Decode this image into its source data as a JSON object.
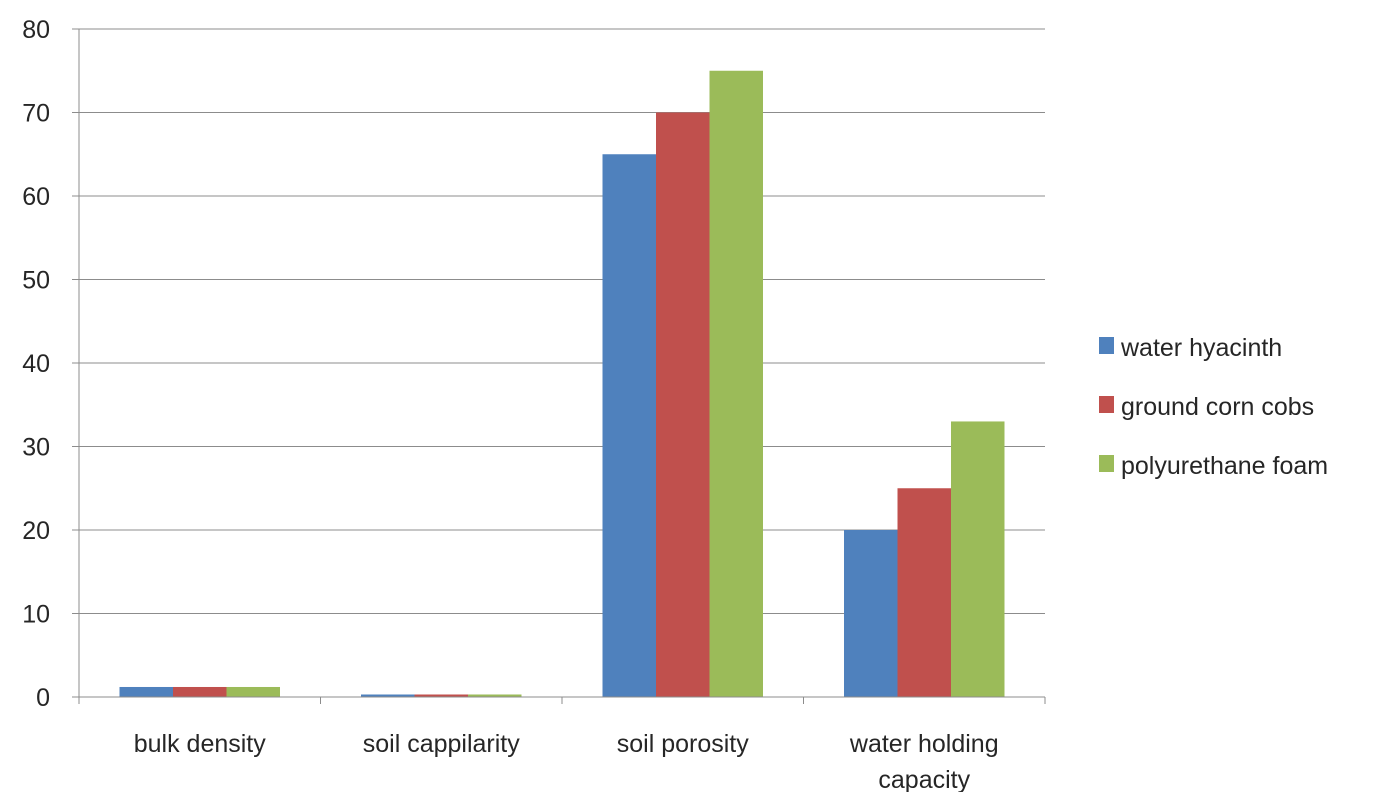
{
  "chart_data": {
    "type": "bar",
    "title": "",
    "xlabel": "",
    "ylabel": "",
    "categories": [
      [
        "bulk density"
      ],
      [
        "soil cappilarity"
      ],
      [
        "soil porosity"
      ],
      [
        "water holding",
        "capacity"
      ]
    ],
    "series": [
      {
        "name": "water hyacinth",
        "color": "#4F81BD",
        "values": [
          1.2,
          0.3,
          65,
          20
        ]
      },
      {
        "name": "ground corn cobs",
        "color": "#C0504D",
        "values": [
          1.2,
          0.3,
          70,
          25
        ]
      },
      {
        "name": "polyurethane foam",
        "color": "#9BBB59",
        "values": [
          1.2,
          0.3,
          75,
          33
        ]
      }
    ],
    "ylim": [
      0,
      80
    ],
    "yticks": [
      "0",
      "10",
      "20",
      "30",
      "40",
      "50",
      "60",
      "70",
      "80"
    ],
    "grid": true,
    "legend_position": "right"
  }
}
